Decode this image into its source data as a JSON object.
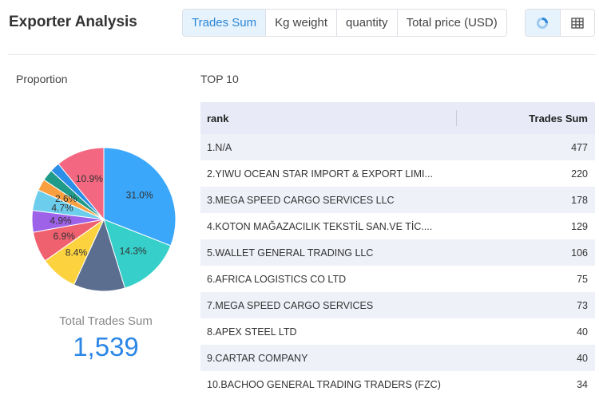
{
  "header": {
    "title": "Exporter Analysis",
    "tabs": [
      {
        "label": "Trades Sum",
        "active": true
      },
      {
        "label": "Kg weight",
        "active": false
      },
      {
        "label": "quantity",
        "active": false
      },
      {
        "label": "Total price (USD)",
        "active": false
      }
    ],
    "view_toggle": {
      "chart_icon": "donut-chart-icon",
      "table_icon": "table-icon",
      "active": "chart"
    }
  },
  "proportion": {
    "label": "Proportion",
    "total_label": "Total Trades Sum",
    "total_value": "1,539"
  },
  "chart_data": {
    "type": "pie",
    "slices": [
      {
        "value": 31.0,
        "label": "31.0%",
        "color": "#3ba7fb"
      },
      {
        "value": 14.3,
        "label": "14.3%",
        "color": "#36cfc9"
      },
      {
        "value": 11.6,
        "label": "",
        "color": "#5b6e8f"
      },
      {
        "value": 8.4,
        "label": "8.4%",
        "color": "#fcd33f"
      },
      {
        "value": 6.9,
        "label": "6.9%",
        "color": "#f0616f"
      },
      {
        "value": 4.9,
        "label": "4.9%",
        "color": "#9e62e8"
      },
      {
        "value": 4.7,
        "label": "4.7%",
        "color": "#6dcdec"
      },
      {
        "value": 2.6,
        "label": "2.6%",
        "color": "#fa9f3f"
      },
      {
        "value": 2.6,
        "label": "",
        "color": "#219b89"
      },
      {
        "value": 2.2,
        "label": "",
        "color": "#2b8fe8"
      },
      {
        "value": 10.9,
        "label": "10.9%",
        "color": "#f36780"
      }
    ]
  },
  "top10": {
    "label": "TOP 10",
    "columns": {
      "rank": "rank",
      "value": "Trades Sum"
    },
    "rows": [
      {
        "name": "1.N/A",
        "value": "477"
      },
      {
        "name": "2.YIWU OCEAN STAR IMPORT & EXPORT LIMI...",
        "value": "220"
      },
      {
        "name": "3.MEGA SPEED CARGO SERVICES LLC",
        "value": "178"
      },
      {
        "name": "4.KOTON MAĞAZACILIK TEKSTİL SAN.VE TİC....",
        "value": "129"
      },
      {
        "name": "5.WALLET GENERAL TRADING LLC",
        "value": "106"
      },
      {
        "name": "6.AFRICA LOGISTICS CO LTD",
        "value": "75"
      },
      {
        "name": "7.MEGA SPEED CARGO SERVICES",
        "value": "73"
      },
      {
        "name": "8.APEX STEEL LTD",
        "value": "40"
      },
      {
        "name": "9.CARTAR COMPANY",
        "value": "40"
      },
      {
        "name": "10.BACHOO GENERAL TRADING TRADERS (FZC)",
        "value": "34"
      }
    ]
  }
}
